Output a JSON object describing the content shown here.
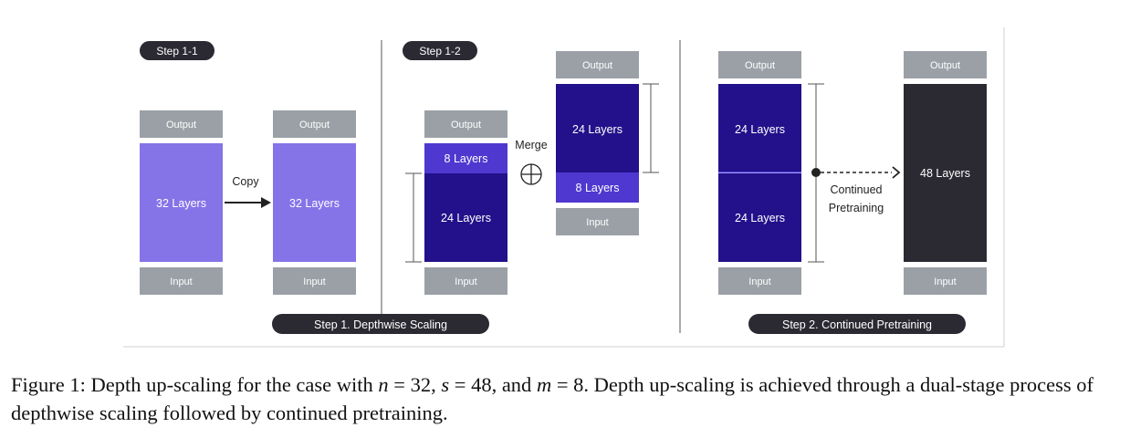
{
  "colors": {
    "gray_box": "#9aa0a6",
    "purple_light": "#8573e8",
    "purple_medium": "#4e38cf",
    "navy": "#22118a",
    "black_box": "#2b2932",
    "pill": "#2b2932",
    "frame_line": "#d0d0d0"
  },
  "step1_1": {
    "pill": "Step 1-1",
    "left_model": {
      "output": "Output",
      "layers": "32 Layers",
      "input": "Input"
    },
    "copy_label": "Copy",
    "right_model": {
      "output": "Output",
      "layers": "32 Layers",
      "input": "Input"
    }
  },
  "step1_2": {
    "pill": "Step 1-2",
    "left_model": {
      "output": "Output",
      "top_layers": "8 Layers",
      "bottom_layers": "24 Layers",
      "input": "Input"
    },
    "merge_label": "Merge",
    "merge_symbol": "⊕",
    "right_model": {
      "output": "Output",
      "top_layers": "24 Layers",
      "bottom_layers": "8 Layers",
      "input": "Input"
    }
  },
  "step2": {
    "merged_model": {
      "output": "Output",
      "top_layers": "24 Layers",
      "bottom_layers": "24 Layers",
      "input": "Input"
    },
    "arrow_label_line1": "Continued",
    "arrow_label_line2": "Pretraining",
    "final_model": {
      "output": "Output",
      "layers": "48 Layers",
      "input": "Input"
    }
  },
  "bottom_pills": {
    "step1": "Step 1.  Depthwise Scaling",
    "step2": "Step 2. Continued Pretraining"
  },
  "caption": {
    "lead": "Figure 1: Depth up-scaling for the case with ",
    "n_var": "n",
    "n_eq": " = 32, ",
    "s_var": "s",
    "s_eq": " = 48, and ",
    "m_var": "m",
    "m_eq": " = 8",
    "rest": ". Depth up-scaling is achieved through a dual-stage process of depthwise scaling followed by continued pretraining."
  }
}
